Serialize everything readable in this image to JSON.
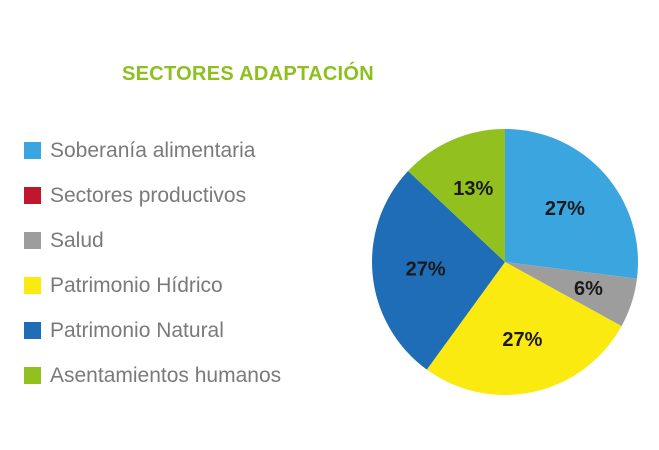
{
  "chart_data": {
    "type": "pie",
    "title": "SECTORES ADAPTACIÓN",
    "start_angle_deg": 0,
    "direction": "clockwise",
    "slices": [
      {
        "label": "Soberanía alimentaria",
        "value": 27,
        "display": "27%",
        "color": "#3aa5de"
      },
      {
        "label": "Sectores productivos",
        "value": 0,
        "display": "",
        "color": "#c1172e"
      },
      {
        "label": "Salud",
        "value": 6,
        "display": "6%",
        "color": "#9d9d9d"
      },
      {
        "label": "Patrimonio Hídrico",
        "value": 27,
        "display": "27%",
        "color": "#fbea0f"
      },
      {
        "label": "Patrimonio Natural",
        "value": 27,
        "display": "27%",
        "color": "#1f6db6"
      },
      {
        "label": "Asentamientos humanos",
        "value": 13,
        "display": "13%",
        "color": "#92c01f"
      }
    ],
    "legend_position": "left"
  },
  "colors": {
    "title": "#8dbf1f"
  }
}
